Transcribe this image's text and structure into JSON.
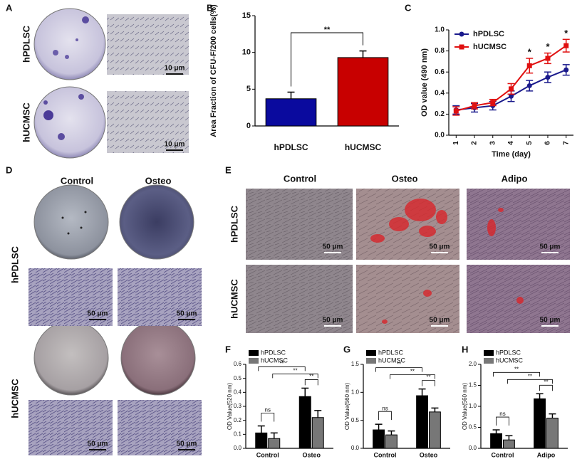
{
  "panel_letters": [
    "A",
    "B",
    "C",
    "D",
    "E",
    "F",
    "G",
    "H"
  ],
  "panel_a": {
    "row_labels": [
      "hPDLSC",
      "hUCMSC"
    ],
    "scale_bars": [
      "10 μm",
      "10 μm"
    ]
  },
  "panel_d": {
    "column_labels": [
      "Control",
      "Osteo"
    ],
    "row_labels": [
      "hPDLSC",
      "hUCMSC"
    ],
    "scale_bars": [
      "50 μm",
      "50 μm",
      "50 μm",
      "50 μm"
    ]
  },
  "panel_e": {
    "column_labels": [
      "Control",
      "Osteo",
      "Adipo"
    ],
    "row_labels": [
      "hPDLSC",
      "hUCMSC"
    ],
    "scale_bars": [
      "50 μm",
      "50 μm",
      "50 μm",
      "50 μm",
      "50 μm",
      "50 μm"
    ]
  },
  "chart_data": [
    {
      "type": "bar",
      "ylabel": "Area Fraction of CFU-F/200 cells(%)",
      "categories": [
        "hPDLSC",
        "hUCMSC"
      ],
      "values": [
        3.7,
        9.3
      ],
      "errors": [
        0.9,
        0.9
      ],
      "colors": [
        "#0a0a9e",
        "#c80000"
      ],
      "ylim": [
        0,
        15
      ],
      "yticks": [
        0,
        5,
        10,
        15
      ],
      "annotations": [
        "**"
      ]
    },
    {
      "type": "line",
      "xlabel": "Time (day)",
      "ylabel": "OD value (490 nm)",
      "x": [
        1,
        2,
        3,
        4,
        5,
        6,
        7
      ],
      "xlim": [
        0.6,
        7.4
      ],
      "xticks": [
        1,
        2,
        3,
        4,
        5,
        6,
        7
      ],
      "ylim": [
        0,
        1.0
      ],
      "yticks": [
        {
          "value": 0,
          "label": "0.0"
        },
        0.2,
        0.4,
        0.6,
        0.8,
        {
          "value": 1.0,
          "label": "1.0"
        }
      ],
      "series": [
        {
          "name": "hPDLSC",
          "color": "#1a1a8c",
          "values": [
            0.24,
            0.26,
            0.28,
            0.37,
            0.47,
            0.55,
            0.62
          ],
          "errors": [
            0.04,
            0.04,
            0.04,
            0.05,
            0.05,
            0.05,
            0.05
          ]
        },
        {
          "name": "hUCMSC",
          "color": "#e01010",
          "values": [
            0.23,
            0.28,
            0.31,
            0.44,
            0.66,
            0.73,
            0.85
          ],
          "errors": [
            0.04,
            0.03,
            0.03,
            0.05,
            0.07,
            0.05,
            0.06
          ]
        }
      ],
      "annotations": [
        "*",
        "*",
        "*"
      ]
    },
    {
      "type": "bar",
      "ylabel": "OD Value(520 nm)",
      "categories": [
        "Control",
        "Osteo"
      ],
      "ylim": [
        0,
        0.6
      ],
      "yticks": [
        {
          "value": 0,
          "label": "0.0"
        },
        0.1,
        0.2,
        0.3,
        0.4,
        0.5,
        0.6
      ],
      "series": [
        {
          "name": "hPDLSC",
          "color": "#000000",
          "values": [
            0.11,
            0.37
          ],
          "errors": [
            0.05,
            0.06
          ]
        },
        {
          "name": "hUCMSC",
          "color": "#777777",
          "values": [
            0.07,
            0.22
          ],
          "errors": [
            0.04,
            0.05
          ]
        }
      ],
      "annotations": [
        "ns",
        "**",
        "**",
        "**"
      ]
    },
    {
      "type": "bar",
      "ylabel": "OD Value(560 nm)",
      "categories": [
        "Control",
        "Osteo"
      ],
      "ylim": [
        0,
        1.5
      ],
      "yticks": [
        {
          "value": 0,
          "label": "0.0"
        },
        0.5,
        {
          "value": 1.0,
          "label": "1.0"
        },
        1.5
      ],
      "series": [
        {
          "name": "hPDLSC",
          "color": "#000000",
          "values": [
            0.33,
            0.94
          ],
          "errors": [
            0.1,
            0.12
          ]
        },
        {
          "name": "hUCMSC",
          "color": "#777777",
          "values": [
            0.24,
            0.65
          ],
          "errors": [
            0.07,
            0.07
          ]
        }
      ],
      "annotations": [
        "ns",
        "**",
        "**",
        "**"
      ]
    },
    {
      "type": "bar",
      "ylabel": "OD Value(560 nm)",
      "categories": [
        "Control",
        "Adipo"
      ],
      "ylim": [
        0,
        2.0
      ],
      "yticks": [
        {
          "value": 0,
          "label": "0.0"
        },
        0.5,
        {
          "value": 1.0,
          "label": "1.0"
        },
        1.5,
        {
          "value": 2.0,
          "label": "2.0"
        }
      ],
      "series": [
        {
          "name": "hPDLSC",
          "color": "#000000",
          "values": [
            0.35,
            1.18
          ],
          "errors": [
            0.09,
            0.12
          ]
        },
        {
          "name": "hUCMSC",
          "color": "#777777",
          "values": [
            0.2,
            0.72
          ],
          "errors": [
            0.1,
            0.1
          ]
        }
      ],
      "annotations": [
        "ns",
        "**",
        "**",
        "**"
      ]
    }
  ]
}
